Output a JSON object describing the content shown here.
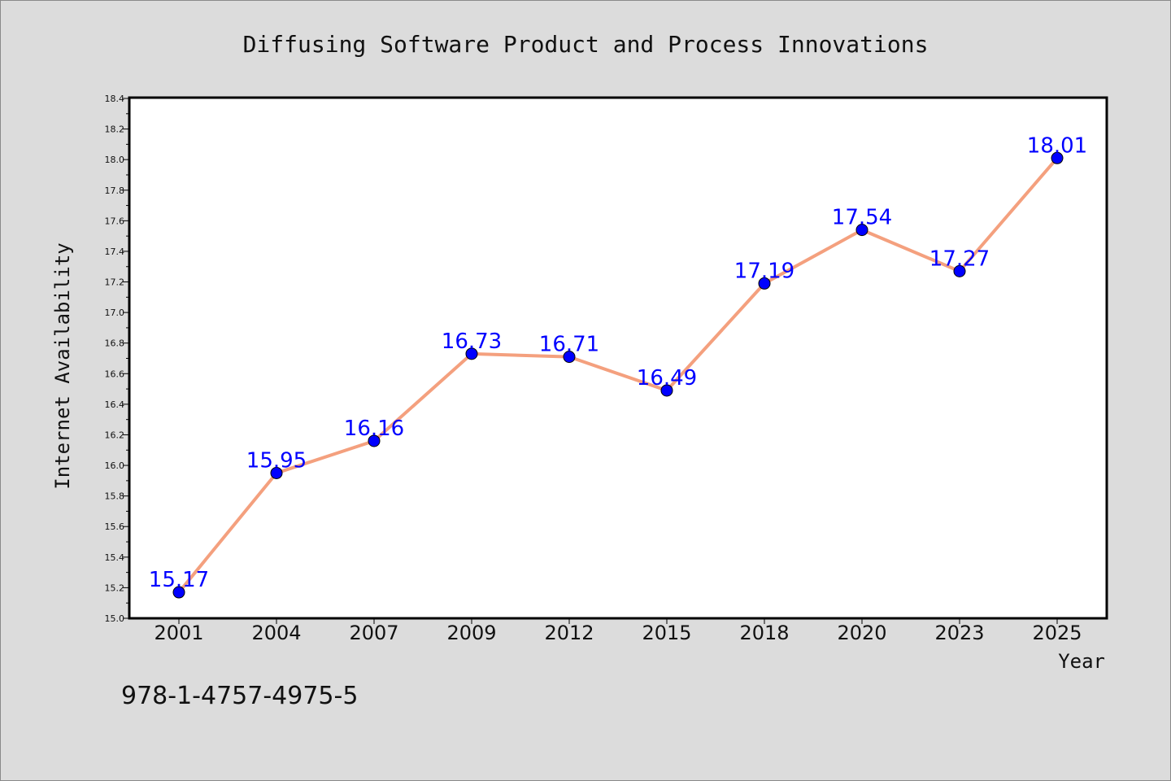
{
  "chart_data": {
    "type": "line",
    "title": "Diffusing Software Product and Process Innovations",
    "xlabel": "Year",
    "ylabel": "Internet Availability",
    "categories": [
      "2001",
      "2004",
      "2007",
      "2009",
      "2012",
      "2015",
      "2018",
      "2020",
      "2023",
      "2025"
    ],
    "series": [
      {
        "values": [
          15.17,
          15.95,
          16.16,
          16.73,
          16.71,
          16.49,
          17.19,
          17.54,
          17.27,
          18.01
        ],
        "labels": [
          "15.17",
          "15.95",
          "16.16",
          "16.73",
          "16.71",
          "16.49",
          "17.19",
          "17.54",
          "17.27",
          "18.01"
        ],
        "line_color": "#f4a07e",
        "marker_color": "#0000ff"
      }
    ],
    "ylim": [
      15.0,
      18.4
    ],
    "yticks": [
      "15.0",
      "15.2",
      "15.4",
      "15.6",
      "15.8",
      "16.0",
      "16.2",
      "16.4",
      "16.6",
      "16.8",
      "17.0",
      "17.2",
      "17.4",
      "17.6",
      "17.8",
      "18.0",
      "18.2",
      "18.4"
    ],
    "grid": false,
    "legend": "none"
  },
  "footer": {
    "code": "978-1-4757-4975-5"
  },
  "colors": {
    "background": "#dcdcdc",
    "plot_background": "#ffffff",
    "data_label": "#0000ff"
  }
}
